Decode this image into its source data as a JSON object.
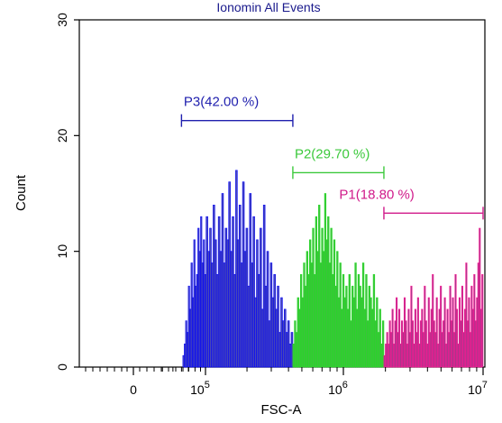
{
  "chart_data": {
    "type": "histogram",
    "title": "Ionomin All Events",
    "xlabel": "FSC-A",
    "ylabel": "Count",
    "x_scale": "log",
    "x_ticks": [
      {
        "value": 0,
        "base": "0",
        "exp": ""
      },
      {
        "value": 100000,
        "base": "10",
        "exp": "5"
      },
      {
        "value": 1000000,
        "base": "10",
        "exp": "6"
      },
      {
        "value": 10000000,
        "base": "10",
        "exp": "7"
      }
    ],
    "y_ticks": [
      "0",
      "10",
      "20",
      "30"
    ],
    "ylim": [
      0,
      30
    ],
    "grid": false,
    "gates": [
      {
        "name": "P3",
        "label": "P3(42.00 %)",
        "percent": 42.0,
        "color": "#1f1fae",
        "x_range": [
          60000,
          430000
        ],
        "y_level": 21.3
      },
      {
        "name": "P2",
        "label": "P2(29.70 %)",
        "percent": 29.7,
        "color": "#3cc93c",
        "x_range": [
          430000,
          1950000
        ],
        "y_level": 16.8
      },
      {
        "name": "P1",
        "label": "P1(18.80 %)",
        "percent": 18.8,
        "color": "#d01a8a",
        "x_range": [
          1950000,
          10000000
        ],
        "y_level": 13.3
      }
    ],
    "series": [
      {
        "gate": "P3",
        "fill": "#4a4ab5",
        "stroke": "#0000ff",
        "x_range": [
          60000,
          430000
        ],
        "values": [
          0,
          1,
          2,
          4,
          3,
          7,
          5,
          9,
          6,
          11,
          7,
          8,
          12,
          10,
          13,
          9,
          11,
          8,
          13,
          10,
          12,
          9,
          14,
          11,
          8,
          13,
          10,
          15,
          9,
          12,
          11,
          16,
          10,
          13,
          8,
          17,
          11,
          14,
          9,
          16,
          10,
          12,
          7,
          15,
          9,
          13,
          6,
          11,
          8,
          12,
          5,
          14,
          7,
          10,
          4,
          9,
          6,
          8,
          5,
          7,
          3,
          6,
          4,
          5,
          3,
          4,
          2,
          3
        ]
      },
      {
        "gate": "P2",
        "fill": "#3fbf3f",
        "stroke": "#22dd22",
        "x_range": [
          430000,
          1950000
        ],
        "values": [
          2,
          4,
          3,
          6,
          5,
          8,
          6,
          9,
          7,
          10,
          8,
          11,
          9,
          12,
          8,
          13,
          10,
          14,
          9,
          12,
          10,
          15,
          11,
          13,
          9,
          12,
          8,
          11,
          7,
          10,
          6,
          9,
          5,
          8,
          6,
          7,
          5,
          8,
          4,
          7,
          6,
          9,
          5,
          8,
          7,
          6,
          9,
          5,
          8,
          4,
          7,
          6,
          5,
          8,
          4,
          6,
          3,
          5,
          2,
          4
        ]
      },
      {
        "gate": "P1",
        "fill": "#a23a8a",
        "stroke": "#ff1493",
        "x_range": [
          1950000,
          10000000
        ],
        "values": [
          1,
          2,
          3,
          2,
          4,
          3,
          5,
          2,
          4,
          6,
          3,
          5,
          2,
          4,
          3,
          6,
          4,
          2,
          5,
          3,
          7,
          4,
          2,
          5,
          3,
          6,
          2,
          4,
          5,
          3,
          7,
          4,
          2,
          6,
          3,
          5,
          8,
          4,
          3,
          6,
          2,
          5,
          7,
          3,
          4,
          6,
          2,
          5,
          3,
          7,
          4,
          6,
          3,
          8,
          5,
          2,
          6,
          4,
          7,
          3,
          5,
          9,
          4,
          6,
          3,
          7,
          5,
          8,
          4,
          6,
          9,
          12,
          5,
          8
        ]
      }
    ]
  }
}
